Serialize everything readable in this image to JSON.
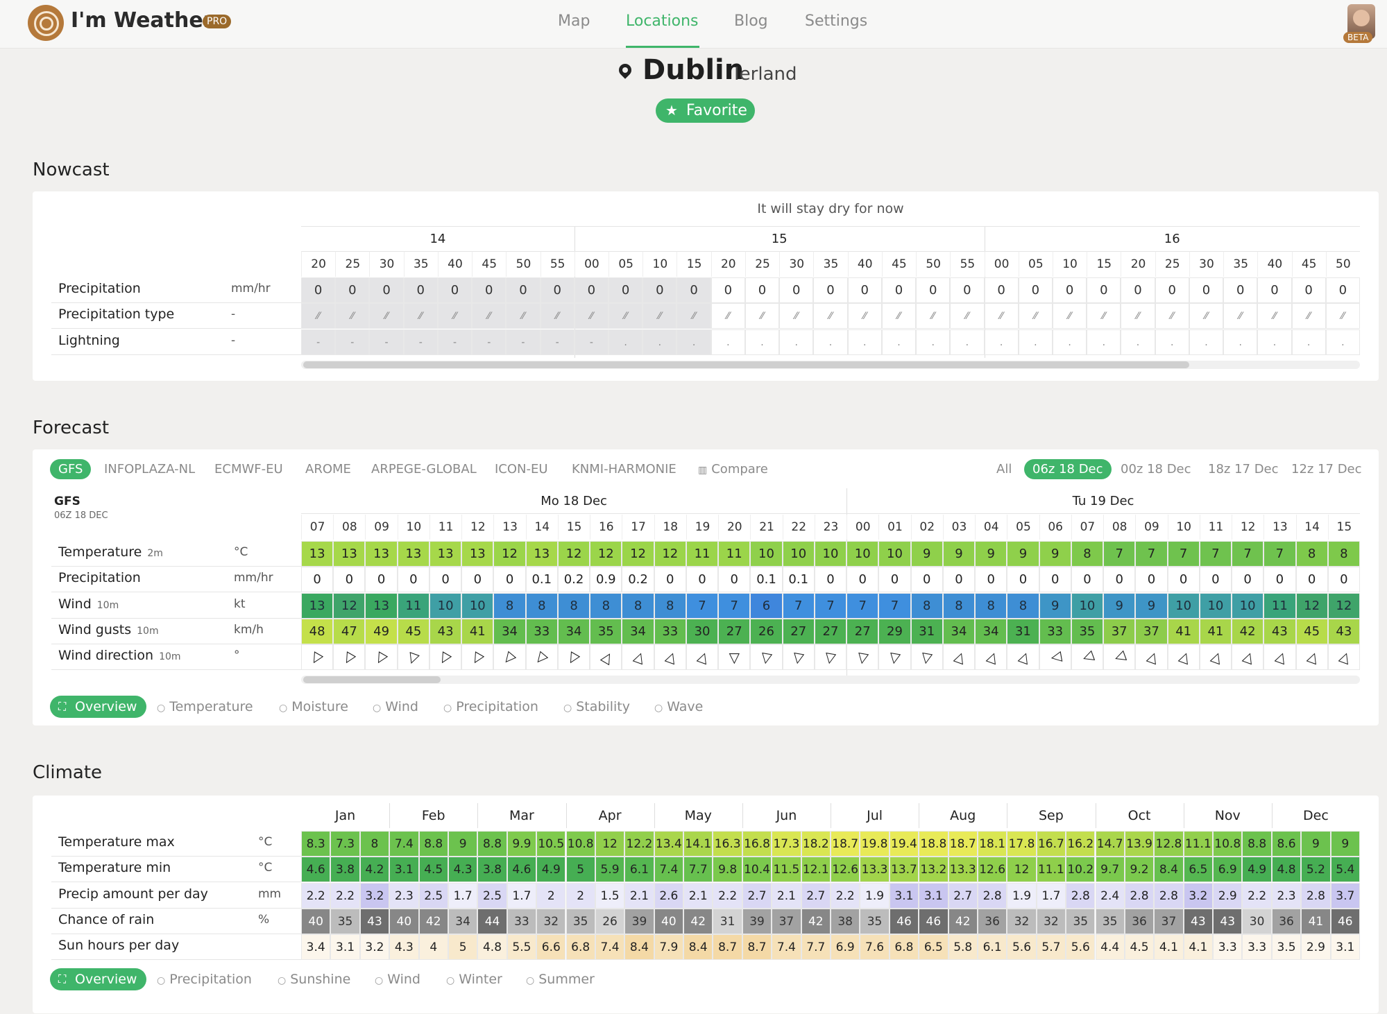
{
  "app": {
    "brand": "I'm Weather",
    "pro_badge": "PRO",
    "beta_badge": "BETA"
  },
  "nav": [
    {
      "label": "Map",
      "active": false
    },
    {
      "label": "Locations",
      "active": true
    },
    {
      "label": "Blog",
      "active": false
    },
    {
      "label": "Settings",
      "active": false
    }
  ],
  "location": {
    "city": "Dublin",
    "country": "Ierland",
    "favorite_label": "Favorite"
  },
  "nowcast": {
    "title": "Nowcast",
    "status": "It will stay dry for now",
    "hours": [
      {
        "label": "14",
        "minutes": [
          "20",
          "25",
          "30",
          "35",
          "40",
          "45",
          "50",
          "55"
        ]
      },
      {
        "label": "15",
        "minutes": [
          "00",
          "05",
          "10",
          "15",
          "20",
          "25",
          "30",
          "35",
          "40",
          "45",
          "50",
          "55"
        ]
      },
      {
        "label": "16",
        "minutes": [
          "00",
          "05",
          "10",
          "15",
          "20",
          "25",
          "30",
          "35",
          "40",
          "45",
          "50"
        ]
      }
    ],
    "rows": [
      {
        "label": "Precipitation",
        "unit": "mm/hr",
        "values": [
          "0",
          "0",
          "0",
          "0",
          "0",
          "0",
          "0",
          "0",
          "0",
          "0",
          "0",
          "0",
          "0",
          "0",
          "0",
          "0",
          "0",
          "0",
          "0",
          "0",
          "0",
          "0",
          "0",
          "0",
          "0",
          "0",
          "0",
          "0",
          "0",
          "0",
          "0"
        ]
      },
      {
        "label": "Precipitation type",
        "unit": "-",
        "values": [
          "⁄⁄",
          "⁄⁄",
          "⁄⁄",
          "⁄⁄",
          "⁄⁄",
          "⁄⁄",
          "⁄⁄",
          "⁄⁄",
          "⁄⁄",
          "⁄⁄",
          "⁄⁄",
          "⁄⁄",
          "⁄⁄",
          "⁄⁄",
          "⁄⁄",
          "⁄⁄",
          "⁄⁄",
          "⁄⁄",
          "⁄⁄",
          "⁄⁄",
          "⁄⁄",
          "⁄⁄",
          "⁄⁄",
          "⁄⁄",
          "⁄⁄",
          "⁄⁄",
          "⁄⁄",
          "⁄⁄",
          "⁄⁄",
          "⁄⁄",
          "⁄⁄"
        ]
      },
      {
        "label": "Lightning",
        "unit": "-",
        "values": [
          "-",
          "-",
          "-",
          "-",
          "-",
          "-",
          "-",
          "-",
          "-",
          ".",
          ".",
          ".",
          ".",
          ".",
          ".",
          ".",
          ".",
          ".",
          ".",
          ".",
          ".",
          ".",
          ".",
          ".",
          ".",
          ".",
          ".",
          ".",
          ".",
          ".",
          "."
        ]
      }
    ],
    "shaded_columns": 12
  },
  "forecast": {
    "title": "Forecast",
    "models": [
      "GFS",
      "INFOPLAZA-NL",
      "ECMWF-EU",
      "AROME",
      "ARPEGE-GLOBAL",
      "ICON-EU",
      "KNMI-HARMONIE",
      "Compare"
    ],
    "selected_model": "GFS",
    "runs": [
      "All",
      "06z 18 Dec",
      "00z 18 Dec",
      "18z 17 Dec",
      "12z 17 Dec"
    ],
    "selected_run": "06z 18 Dec",
    "model_title": "GFS",
    "model_subtitle": "06Z 18 DEC",
    "days": [
      {
        "label": "Mo 18 Dec",
        "hours": [
          "07",
          "08",
          "09",
          "10",
          "11",
          "12",
          "13",
          "14",
          "15",
          "16",
          "17",
          "18",
          "19",
          "20",
          "21",
          "22",
          "23"
        ]
      },
      {
        "label": "Tu 19 Dec",
        "hours": [
          "00",
          "01",
          "02",
          "03",
          "04",
          "05",
          "06",
          "07",
          "08",
          "09",
          "10",
          "11",
          "12",
          "13",
          "14",
          "15"
        ]
      }
    ],
    "rows": [
      {
        "label": "Temperature",
        "sub": "2m",
        "unit": "°C",
        "values": [
          "13",
          "13",
          "13",
          "13",
          "13",
          "13",
          "12",
          "13",
          "12",
          "12",
          "12",
          "12",
          "11",
          "11",
          "10",
          "10",
          "10",
          "10",
          "10",
          "9",
          "9",
          "9",
          "9",
          "9",
          "8",
          "7",
          "7",
          "7",
          "7",
          "7",
          "7",
          "8",
          "8"
        ]
      },
      {
        "label": "Precipitation",
        "sub": "",
        "unit": "mm/hr",
        "values": [
          "0",
          "0",
          "0",
          "0",
          "0",
          "0",
          "0",
          "0.1",
          "0.2",
          "0.9",
          "0.2",
          "0",
          "0",
          "0",
          "0.1",
          "0.1",
          "0",
          "0",
          "0",
          "0",
          "0",
          "0",
          "0",
          "0",
          "0",
          "0",
          "0",
          "0",
          "0",
          "0",
          "0",
          "0",
          "0"
        ]
      },
      {
        "label": "Wind",
        "sub": "10m",
        "unit": "kt",
        "values": [
          "13",
          "12",
          "13",
          "11",
          "10",
          "10",
          "8",
          "8",
          "8",
          "8",
          "8",
          "8",
          "7",
          "7",
          "6",
          "7",
          "7",
          "7",
          "7",
          "8",
          "8",
          "8",
          "8",
          "9",
          "10",
          "9",
          "9",
          "10",
          "10",
          "10",
          "11",
          "12",
          "12"
        ]
      },
      {
        "label": "Wind gusts",
        "sub": "10m",
        "unit": "km/h",
        "values": [
          "48",
          "47",
          "49",
          "45",
          "43",
          "41",
          "34",
          "33",
          "34",
          "35",
          "34",
          "33",
          "30",
          "27",
          "26",
          "27",
          "27",
          "27",
          "29",
          "31",
          "34",
          "34",
          "31",
          "33",
          "35",
          "37",
          "37",
          "41",
          "41",
          "42",
          "43",
          "45",
          "43"
        ]
      },
      {
        "label": "Wind direction",
        "sub": "10m",
        "unit": "°",
        "values": [
          "▽",
          "▽",
          "▽",
          "▽",
          "▽",
          "▽",
          "▽",
          "▽",
          "▽",
          "▷",
          "▷",
          "▷",
          "▷",
          "▽",
          "▽",
          "▽",
          "▽",
          "▽",
          "▽",
          "▽",
          "▷",
          "▷",
          "▷",
          "△",
          "△",
          "△",
          "▷",
          "▷",
          "▷",
          "▷",
          "▷",
          "▷",
          "▷"
        ]
      }
    ],
    "wind_dir_degrees": [
      30,
      30,
      30,
      20,
      30,
      30,
      40,
      40,
      30,
      300,
      290,
      290,
      290,
      0,
      10,
      10,
      10,
      10,
      10,
      10,
      290,
      290,
      290,
      260,
      250,
      250,
      290,
      290,
      290,
      290,
      290,
      290,
      290
    ],
    "subtabs": [
      "Overview",
      "Temperature",
      "Moisture",
      "Wind",
      "Precipitation",
      "Stability",
      "Wave"
    ]
  },
  "climate": {
    "title": "Climate",
    "months": [
      "Jan",
      "Feb",
      "Mar",
      "Apr",
      "May",
      "Jun",
      "Jul",
      "Aug",
      "Sep",
      "Oct",
      "Nov",
      "Dec"
    ],
    "rows": [
      {
        "label": "Temperature max",
        "unit": "°C",
        "values": [
          "8.3",
          "7.3",
          "8",
          "7.4",
          "8.8",
          "9",
          "8.8",
          "9.9",
          "10.5",
          "10.8",
          "12",
          "12.2",
          "13.4",
          "14.1",
          "16.3",
          "16.8",
          "17.3",
          "18.2",
          "18.7",
          "19.8",
          "19.4",
          "18.8",
          "18.7",
          "18.1",
          "17.8",
          "16.7",
          "16.2",
          "14.7",
          "13.9",
          "12.8",
          "11.1",
          "10.8",
          "8.8",
          "8.6",
          "9",
          "9"
        ]
      },
      {
        "label": "Temperature min",
        "unit": "°C",
        "values": [
          "4.6",
          "3.8",
          "4.2",
          "3.1",
          "4.5",
          "4.3",
          "3.8",
          "4.6",
          "4.9",
          "5",
          "5.9",
          "6.1",
          "7.4",
          "7.7",
          "9.8",
          "10.4",
          "11.5",
          "12.1",
          "12.6",
          "13.3",
          "13.7",
          "13.2",
          "13.3",
          "12.6",
          "12",
          "11.1",
          "10.2",
          "9.7",
          "9.2",
          "8.4",
          "6.5",
          "6.9",
          "4.9",
          "4.8",
          "5.2",
          "5.4"
        ]
      },
      {
        "label": "Precip amount per day",
        "unit": "mm",
        "values": [
          "2.2",
          "2.2",
          "3.2",
          "2.3",
          "2.5",
          "1.7",
          "2.5",
          "1.7",
          "2",
          "2",
          "1.5",
          "2.1",
          "2.6",
          "2.1",
          "2.2",
          "2.7",
          "2.1",
          "2.7",
          "2.2",
          "1.9",
          "3.1",
          "3.1",
          "2.7",
          "2.8",
          "1.9",
          "1.7",
          "2.8",
          "2.4",
          "2.8",
          "2.8",
          "3.2",
          "2.9",
          "2.2",
          "2.3",
          "2.8",
          "3.7"
        ]
      },
      {
        "label": "Chance of rain",
        "unit": "%",
        "values": [
          "40",
          "35",
          "43",
          "40",
          "42",
          "34",
          "44",
          "33",
          "32",
          "35",
          "26",
          "39",
          "40",
          "42",
          "31",
          "39",
          "37",
          "42",
          "38",
          "35",
          "46",
          "46",
          "42",
          "36",
          "32",
          "32",
          "35",
          "35",
          "36",
          "37",
          "43",
          "43",
          "30",
          "36",
          "41",
          "46"
        ]
      },
      {
        "label": "Sun hours per day",
        "unit": "",
        "values": [
          "3.4",
          "3.1",
          "3.2",
          "4.3",
          "4",
          "5",
          "4.8",
          "5.5",
          "6.6",
          "6.8",
          "7.4",
          "8.4",
          "7.9",
          "8.4",
          "8.7",
          "8.7",
          "7.4",
          "7.7",
          "6.9",
          "7.6",
          "6.8",
          "6.5",
          "5.8",
          "6.1",
          "5.6",
          "5.7",
          "5.6",
          "4.4",
          "4.5",
          "4.1",
          "4.1",
          "3.3",
          "3.3",
          "3.5",
          "2.9",
          "3.1"
        ]
      }
    ],
    "subtabs": [
      "Overview",
      "Precipitation",
      "Sunshine",
      "Wind",
      "Winter",
      "Summer"
    ]
  }
}
